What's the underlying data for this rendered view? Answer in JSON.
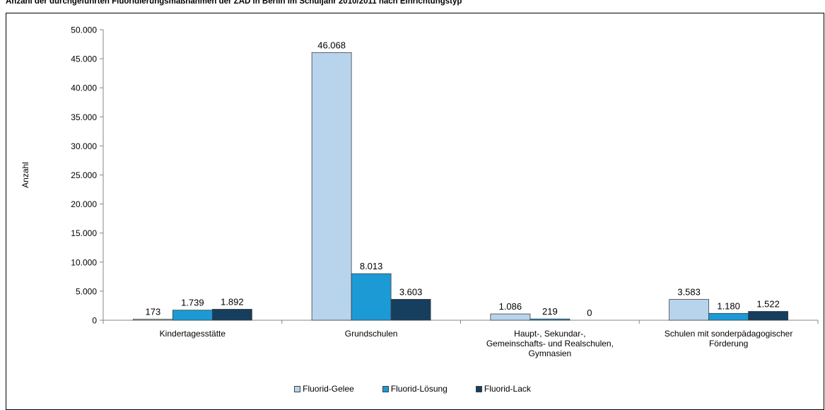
{
  "chart_data": {
    "type": "bar",
    "title": "Anzahl der durchgeführten Fluoridierungsmaßnahmen der ZAD in Berlin im Schuljahr 2010/2011 nach Einrichtungstyp",
    "ylabel": "Anzahl",
    "xlabel": "",
    "ylim": [
      0,
      50000
    ],
    "yticks": [
      0,
      5000,
      10000,
      15000,
      20000,
      25000,
      30000,
      35000,
      40000,
      45000,
      50000
    ],
    "ytick_labels": [
      "0",
      "5.000",
      "10.000",
      "15.000",
      "20.000",
      "25.000",
      "30.000",
      "35.000",
      "40.000",
      "45.000",
      "50.000"
    ],
    "categories": [
      [
        "Kindertagesstätte"
      ],
      [
        "Grundschulen"
      ],
      [
        "Haupt-, Sekundar-,",
        "Gemeinschafts- und Realschulen,",
        "Gymnasien"
      ],
      [
        "Schulen mit sonderpädagogischer",
        "Förderung"
      ]
    ],
    "series": [
      {
        "name": "Fluorid-Gelee",
        "color": "#b8d4ec",
        "values": [
          173,
          46068,
          1086,
          3583
        ],
        "labels": [
          "173",
          "46.068",
          "1.086",
          "3.583"
        ]
      },
      {
        "name": "Fluorid-Lösung",
        "color": "#1c9ad6",
        "values": [
          1739,
          8013,
          219,
          1180
        ],
        "labels": [
          "1.739",
          "8.013",
          "219",
          "1.180"
        ]
      },
      {
        "name": "Fluorid-Lack",
        "color": "#163e5e",
        "values": [
          1892,
          3603,
          0,
          1522
        ],
        "labels": [
          "1.892",
          "3.603",
          "0",
          "1.522"
        ]
      }
    ],
    "grid": false,
    "legend_position": "bottom"
  }
}
